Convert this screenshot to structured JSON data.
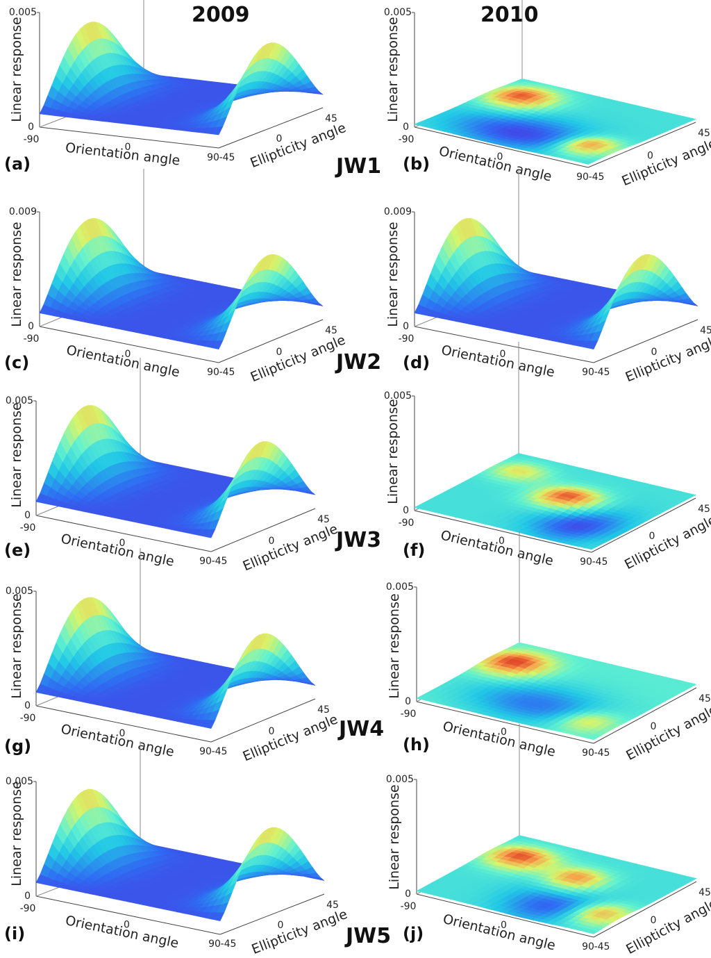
{
  "column_headers": [
    "2009",
    "2010"
  ],
  "row_labels": [
    "JW1",
    "JW2",
    "JW3",
    "JW4",
    "JW5"
  ],
  "colormap": [
    "#5a1ad6",
    "#2f6cf2",
    "#22c7e6",
    "#63f2cf",
    "#d8f46a",
    "#f7a24b",
    "#d8241a"
  ],
  "chart_data": [
    {
      "panel": "(a)",
      "year": "2009",
      "group": "JW1",
      "type": "surface",
      "xlabel": "Orientation angle",
      "ylabel": "Ellipticity angle",
      "zlabel": "Linear response",
      "xticks": [
        "-90",
        "0",
        "90"
      ],
      "yticks": [
        "-45",
        "0",
        "45"
      ],
      "zticks": [
        "0",
        "0.005"
      ],
      "zlim": [
        0,
        0.005
      ],
      "xlim": [
        -90,
        90
      ],
      "ylim": [
        -45,
        45
      ],
      "peak_value": 0.0048
    },
    {
      "panel": "(b)",
      "year": "2010",
      "group": "JW1",
      "type": "surface",
      "xlabel": "Orientation angle",
      "ylabel": "Ellipticity angle",
      "zlabel": "Linear response",
      "xticks": [
        "-90",
        "0",
        "90"
      ],
      "yticks": [
        "-45",
        "0",
        "45"
      ],
      "zticks": [
        "0",
        "0.005"
      ],
      "zlim": [
        0,
        0.005
      ],
      "xlim": [
        -90,
        90
      ],
      "ylim": [
        -45,
        45
      ],
      "peak_value": 0.0011
    },
    {
      "panel": "(c)",
      "year": "2009",
      "group": "JW2",
      "type": "surface",
      "xlabel": "Orientation angle",
      "ylabel": "Ellipticity angle",
      "zlabel": "Linear response",
      "xticks": [
        "-90",
        "0",
        "90"
      ],
      "yticks": [
        "-45",
        "0",
        "45"
      ],
      "zticks": [
        "0",
        "0.009"
      ],
      "zlim": [
        0,
        0.009
      ],
      "xlim": [
        -90,
        90
      ],
      "ylim": [
        -45,
        45
      ],
      "peak_value": 0.0088
    },
    {
      "panel": "(d)",
      "year": "2010",
      "group": "JW2",
      "type": "surface",
      "xlabel": "Orientation angle",
      "ylabel": "Ellipticity angle",
      "zlabel": "Linear response",
      "xticks": [
        "-90",
        "0",
        "90"
      ],
      "yticks": [
        "-45",
        "0",
        "45"
      ],
      "zticks": [
        "0",
        "0.009"
      ],
      "zlim": [
        0,
        0.009
      ],
      "xlim": [
        -90,
        90
      ],
      "ylim": [
        -45,
        45
      ],
      "peak_value": 0.0088
    },
    {
      "panel": "(e)",
      "year": "2009",
      "group": "JW3",
      "type": "surface",
      "xlabel": "Orientation angle",
      "ylabel": "Ellipticity angle",
      "zlabel": "Linear response",
      "xticks": [
        "-90",
        "0",
        "90"
      ],
      "yticks": [
        "-45",
        "0",
        "45"
      ],
      "zticks": [
        "0",
        "0.005"
      ],
      "zlim": [
        0,
        0.005
      ],
      "xlim": [
        -90,
        90
      ],
      "ylim": [
        -45,
        45
      ],
      "peak_value": 0.005
    },
    {
      "panel": "(f)",
      "year": "2010",
      "group": "JW3",
      "type": "surface",
      "xlabel": "Orientation angle",
      "ylabel": "Ellipticity angle",
      "zlabel": "Linear response",
      "xticks": [
        "-90",
        "0",
        "90"
      ],
      "yticks": [
        "-45",
        "0",
        "45"
      ],
      "zticks": [
        "0",
        "0.005"
      ],
      "zlim": [
        0,
        0.005
      ],
      "xlim": [
        -90,
        90
      ],
      "ylim": [
        -45,
        45
      ],
      "peak_value": 0.001
    },
    {
      "panel": "(g)",
      "year": "2009",
      "group": "JW4",
      "type": "surface",
      "xlabel": "Orientation angle",
      "ylabel": "Ellipticity angle",
      "zlabel": "Linear response",
      "xticks": [
        "-90",
        "0",
        "90"
      ],
      "yticks": [
        "-45",
        "0",
        "45"
      ],
      "zticks": [
        "0",
        "0.005"
      ],
      "zlim": [
        0,
        0.005
      ],
      "xlim": [
        -90,
        90
      ],
      "ylim": [
        -45,
        45
      ],
      "peak_value": 0.0049
    },
    {
      "panel": "(h)",
      "year": "2010",
      "group": "JW4",
      "type": "surface",
      "xlabel": "Orientation angle",
      "ylabel": "Ellipticity angle",
      "zlabel": "Linear response",
      "xticks": [
        "-90",
        "0",
        "90"
      ],
      "yticks": [
        "-45",
        "0",
        "45"
      ],
      "zticks": [
        "0",
        "0.005"
      ],
      "zlim": [
        0,
        0.005
      ],
      "xlim": [
        -90,
        90
      ],
      "ylim": [
        -45,
        45
      ],
      "peak_value": 0.001
    },
    {
      "panel": "(i)",
      "year": "2009",
      "group": "JW5",
      "type": "surface",
      "xlabel": "Orientation angle",
      "ylabel": "Ellipticity angle",
      "zlabel": "Linear response",
      "xticks": [
        "-90",
        "0",
        "90"
      ],
      "yticks": [
        "-45",
        "0",
        "45"
      ],
      "zticks": [
        "0",
        "0.005"
      ],
      "zlim": [
        0,
        0.005
      ],
      "xlim": [
        -90,
        90
      ],
      "ylim": [
        -45,
        45
      ],
      "peak_value": 0.0049
    },
    {
      "panel": "(j)",
      "year": "2010",
      "group": "JW5",
      "type": "surface",
      "xlabel": "Orientation angle",
      "ylabel": "Ellipticity angle",
      "zlabel": "Linear response",
      "xticks": [
        "-90",
        "0",
        "90"
      ],
      "yticks": [
        "-45",
        "0",
        "45"
      ],
      "zticks": [
        "0",
        "0.005"
      ],
      "zlim": [
        0,
        0.005
      ],
      "xlim": [
        -90,
        90
      ],
      "ylim": [
        -45,
        45
      ],
      "peak_value": 0.001
    }
  ]
}
